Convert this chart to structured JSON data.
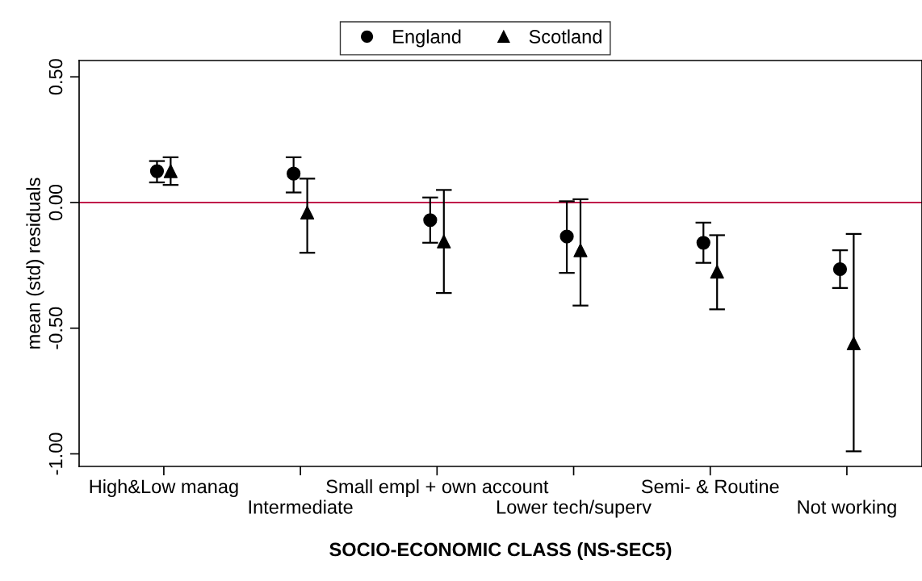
{
  "chart_data": {
    "type": "scatter",
    "xlabel": "SOCIO-ECONOMIC CLASS (NS-SEC5)",
    "ylabel": "mean (std) residuals",
    "categories": [
      "High&Low manag",
      "Intermediate",
      "Small empl + own account",
      "Lower tech/superv",
      "Semi- & Routine",
      "Not working"
    ],
    "series": [
      {
        "name": "England",
        "color": "#000000",
        "marker": "circle",
        "values": [
          0.125,
          0.115,
          -0.07,
          -0.135,
          -0.16,
          -0.265
        ],
        "errors": [
          [
            0.08,
            0.165
          ],
          [
            0.04,
            0.18
          ],
          [
            -0.16,
            0.02
          ],
          [
            -0.28,
            0.005
          ],
          [
            -0.24,
            -0.08
          ],
          [
            -0.34,
            -0.19
          ]
        ]
      },
      {
        "name": "Scotland",
        "color": "#000000",
        "marker": "triangle",
        "values": [
          0.125,
          -0.04,
          -0.155,
          -0.19,
          -0.275,
          -0.56
        ],
        "errors": [
          [
            0.07,
            0.18
          ],
          [
            -0.2,
            0.095
          ],
          [
            -0.36,
            0.05
          ],
          [
            -0.41,
            0.013
          ],
          [
            -0.425,
            -0.13
          ],
          [
            -0.99,
            -0.125
          ]
        ]
      }
    ],
    "ylim": [
      -1.05,
      0.565
    ],
    "yticks": [
      {
        "value": -1.0,
        "label": "-1.00"
      },
      {
        "value": -0.5,
        "label": "-0.50"
      },
      {
        "value": 0,
        "label": "0.00"
      },
      {
        "value": 0.5,
        "label": "0.50"
      }
    ],
    "ref_lines": [
      {
        "axis": "y",
        "value": 0,
        "color": "#c0174a"
      }
    ],
    "legend": "top",
    "grid": false
  }
}
